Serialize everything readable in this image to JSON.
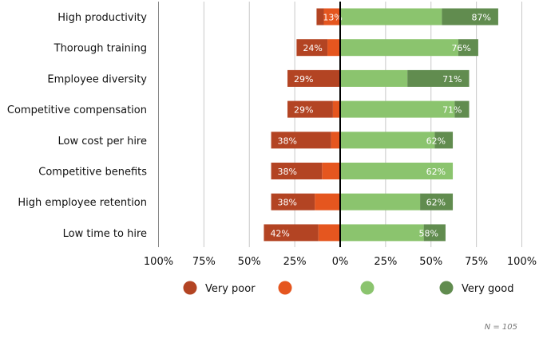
{
  "chart_data": {
    "type": "bar",
    "subtype": "diverging-stacked-horizontal",
    "categories": [
      "High productivity",
      "Thorough training",
      "Employee diversity",
      "Competitive compensation",
      "Low cost per hire",
      "Competitive benefits",
      "High employee retention",
      "Low time to hire"
    ],
    "series": [
      {
        "name": "Very poor",
        "side": "negative",
        "color": "#b34423",
        "values": [
          4,
          17,
          29,
          25,
          33,
          28,
          24,
          30
        ]
      },
      {
        "name": "",
        "side": "negative",
        "color": "#e5561f",
        "values": [
          9,
          7,
          0,
          4,
          5,
          10,
          14,
          12
        ]
      },
      {
        "name": "",
        "side": "positive",
        "color": "#8bc46e",
        "values": [
          56,
          65,
          37,
          63,
          52,
          62,
          44,
          46
        ]
      },
      {
        "name": "Very good",
        "side": "positive",
        "color": "#618c4f",
        "values": [
          31,
          11,
          34,
          8,
          10,
          0,
          18,
          12
        ]
      }
    ],
    "negative_totals": [
      "13%",
      "24%",
      "29%",
      "29%",
      "38%",
      "38%",
      "38%",
      "42%"
    ],
    "positive_totals": [
      "87%",
      "76%",
      "71%",
      "71%",
      "62%",
      "62%",
      "62%",
      "58%"
    ],
    "xlim": [
      -100,
      100
    ],
    "xticks": [
      -100,
      -75,
      -50,
      -25,
      0,
      25,
      50,
      75,
      100
    ],
    "xtick_labels": [
      "100%",
      "75%",
      "50%",
      "25%",
      "0%",
      "25%",
      "50%",
      "75%",
      "100%"
    ],
    "grid": true,
    "legend": {
      "placement": "bottom",
      "labels": [
        "Very poor",
        "",
        "",
        "Very good"
      ]
    },
    "note": "N = 105"
  }
}
